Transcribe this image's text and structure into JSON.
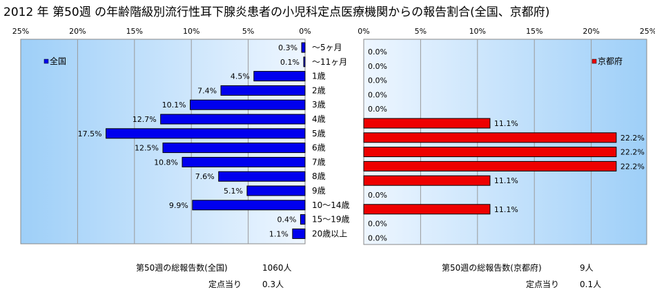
{
  "title": "2012 年 第50週 の年齢階級別流行性耳下腺炎患者の小児科定点医療機関からの報告割合(全国、京都府)",
  "colors": {
    "national": "#0000ee",
    "kyoto": "#ee0000",
    "plot_bg_light": "#eef6ff",
    "plot_bg_dark": "#9ecff8"
  },
  "chart_data": [
    {
      "type": "bar",
      "orientation": "horizontal",
      "direction": "right-to-left",
      "categories": [
        "～5ヶ月",
        "～11ヶ月",
        "1歳",
        "2歳",
        "3歳",
        "4歳",
        "5歳",
        "6歳",
        "7歳",
        "8歳",
        "9歳",
        "10～14歳",
        "15～19歳",
        "20歳以上"
      ],
      "series": [
        {
          "name": "全国",
          "values": [
            0.3,
            0.1,
            4.5,
            7.4,
            10.1,
            12.7,
            17.5,
            12.5,
            10.8,
            7.6,
            5.1,
            9.9,
            0.4,
            1.1
          ]
        }
      ],
      "value_labels": [
        "0.3%",
        "0.1%",
        "4.5%",
        "7.4%",
        "10.1%",
        "12.7%",
        "17.5%",
        "12.5%",
        "10.8%",
        "7.6%",
        "5.1%",
        "9.9%",
        "0.4%",
        "1.1%"
      ],
      "xlim": [
        0,
        25
      ],
      "xticks": [
        "25%",
        "20%",
        "15%",
        "10%",
        "5%",
        "0%"
      ],
      "legend": "top-left",
      "grid": true
    },
    {
      "type": "bar",
      "orientation": "horizontal",
      "direction": "left-to-right",
      "categories": [
        "～5ヶ月",
        "～11ヶ月",
        "1歳",
        "2歳",
        "3歳",
        "4歳",
        "5歳",
        "6歳",
        "7歳",
        "8歳",
        "9歳",
        "10～14歳",
        "15～19歳",
        "20歳以上"
      ],
      "series": [
        {
          "name": "京都府",
          "values": [
            0,
            0,
            0,
            0,
            0,
            11.1,
            22.2,
            22.2,
            22.2,
            11.1,
            0,
            11.1,
            0,
            0
          ]
        }
      ],
      "value_labels": [
        "0.0%",
        "0.0%",
        "0.0%",
        "0.0%",
        "0.0%",
        "11.1%",
        "22.2%",
        "22.2%",
        "22.2%",
        "11.1%",
        "0.0%",
        "11.1%",
        "0.0%",
        "0.0%"
      ],
      "xlim": [
        0,
        25
      ],
      "xticks": [
        "0%",
        "5%",
        "10%",
        "15%",
        "20%",
        "25%"
      ],
      "legend": "top-right",
      "grid": true
    }
  ],
  "footer": {
    "national_total_label": "第50週の総報告数(全国)",
    "national_total_value": "1060人",
    "national_per_label": "定点当り",
    "national_per_value": "0.3人",
    "kyoto_total_label": "第50週の総報告数(京都府)",
    "kyoto_total_value": "9人",
    "kyoto_per_label": "定点当り",
    "kyoto_per_value": "0.1人"
  }
}
